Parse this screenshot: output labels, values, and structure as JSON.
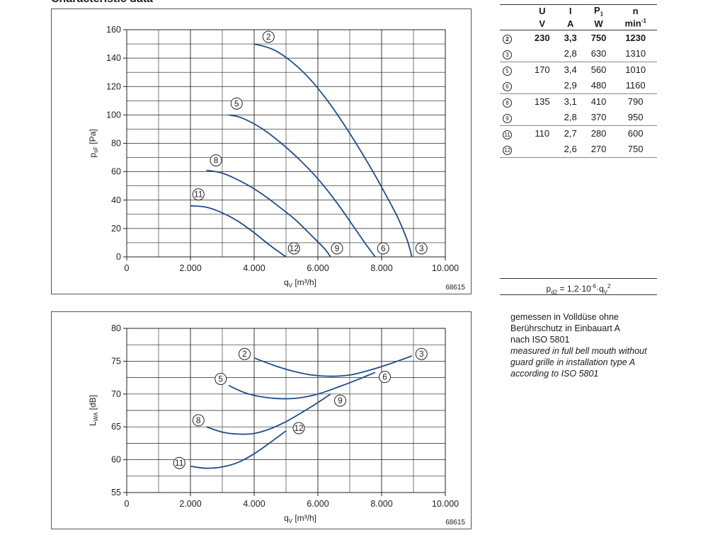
{
  "header": {
    "title": "Characteristic data"
  },
  "chart_data": [
    {
      "type": "line",
      "title": "",
      "xlabel": "q_V [m³/h]",
      "ylabel": "p_sF [Pa]",
      "xlim": [
        0,
        10000
      ],
      "ylim": [
        0,
        160
      ],
      "xticks": [
        "0",
        "2.000",
        "4.000",
        "6.000",
        "8.000",
        "10.000"
      ],
      "yticks": [
        "0",
        "20",
        "40",
        "60",
        "80",
        "100",
        "120",
        "140",
        "160"
      ],
      "grid": true,
      "figure_id": "68615",
      "series": [
        {
          "name": "2",
          "x": [
            4000,
            4600,
            5200,
            5800,
            6400,
            7000,
            7600,
            8100,
            8500,
            8800,
            8950
          ],
          "y": [
            150,
            146,
            137,
            124,
            107,
            87,
            65,
            45,
            28,
            12,
            0
          ]
        },
        {
          "name": "5",
          "x": [
            3200,
            3600,
            4200,
            4800,
            5400,
            6000,
            6600,
            7100,
            7500,
            7800
          ],
          "y": [
            100,
            98,
            91,
            81,
            69,
            55,
            38,
            22,
            9,
            0
          ]
        },
        {
          "name": "8",
          "x": [
            2500,
            3000,
            3600,
            4200,
            4800,
            5300,
            5800,
            6200,
            6400
          ],
          "y": [
            61,
            59,
            53,
            45,
            35,
            26,
            15,
            6,
            0
          ]
        },
        {
          "name": "11",
          "x": [
            2000,
            2500,
            3000,
            3500,
            4000,
            4500,
            5000
          ],
          "y": [
            36,
            35,
            31,
            25,
            17,
            8,
            0
          ]
        }
      ],
      "curve_labels": [
        {
          "text": "2",
          "x": 4450,
          "y": 155
        },
        {
          "text": "5",
          "x": 3450,
          "y": 108
        },
        {
          "text": "8",
          "x": 2800,
          "y": 68
        },
        {
          "text": "11",
          "x": 2250,
          "y": 44
        },
        {
          "text": "12",
          "x": 5250,
          "y": 6
        },
        {
          "text": "9",
          "x": 6600,
          "y": 6
        },
        {
          "text": "6",
          "x": 8050,
          "y": 6
        },
        {
          "text": "3",
          "x": 9250,
          "y": 6
        }
      ]
    },
    {
      "type": "line",
      "title": "",
      "xlabel": "q_V [m³/h]",
      "ylabel": "L_WA [dB]",
      "xlim": [
        0,
        10000
      ],
      "ylim": [
        55,
        80
      ],
      "xticks": [
        "0",
        "2.000",
        "4.000",
        "6.000",
        "8.000",
        "10.000"
      ],
      "yticks": [
        "55",
        "60",
        "65",
        "70",
        "75",
        "80"
      ],
      "grid": true,
      "figure_id": "68615",
      "series": [
        {
          "name": "2-3",
          "x": [
            4000,
            4600,
            5200,
            5800,
            6400,
            7000,
            7600,
            8200,
            8950
          ],
          "y": [
            75.5,
            74.4,
            73.5,
            72.9,
            72.7,
            72.9,
            73.6,
            74.5,
            75.8
          ]
        },
        {
          "name": "5-6",
          "x": [
            3200,
            3700,
            4200,
            4800,
            5400,
            6000,
            6600,
            7200,
            7800
          ],
          "y": [
            71.3,
            70.2,
            69.6,
            69.3,
            69.4,
            70.0,
            71.0,
            72.1,
            73.3
          ]
        },
        {
          "name": "8-9",
          "x": [
            2500,
            3000,
            3500,
            4000,
            4500,
            5000,
            5500,
            6000,
            6400
          ],
          "y": [
            65.0,
            64.2,
            63.9,
            64.0,
            64.7,
            65.8,
            67.2,
            68.7,
            70.0
          ]
        },
        {
          "name": "11-12",
          "x": [
            2000,
            2500,
            3000,
            3500,
            4000,
            4500,
            5000
          ],
          "y": [
            59.0,
            58.7,
            58.9,
            59.6,
            60.9,
            62.6,
            64.4
          ]
        }
      ],
      "curve_labels": [
        {
          "text": "2",
          "x": 3700,
          "y": 76.1
        },
        {
          "text": "3",
          "x": 9250,
          "y": 76.1
        },
        {
          "text": "5",
          "x": 2950,
          "y": 72.3
        },
        {
          "text": "6",
          "x": 8100,
          "y": 72.6
        },
        {
          "text": "8",
          "x": 2250,
          "y": 66.0
        },
        {
          "text": "9",
          "x": 6700,
          "y": 69.0
        },
        {
          "text": "11",
          "x": 1650,
          "y": 59.5
        },
        {
          "text": "12",
          "x": 5400,
          "y": 64.8
        }
      ]
    }
  ],
  "table": {
    "headers": [
      "U",
      "I",
      "P1",
      "n"
    ],
    "units": [
      "V",
      "A",
      "W",
      "min⁻¹"
    ],
    "groups": [
      {
        "rows": [
          {
            "curve": "2",
            "U": "230",
            "I": "3,3",
            "P": "750",
            "n": "1230",
            "bold": true
          },
          {
            "curve": "3",
            "U": "",
            "I": "2,8",
            "P": "630",
            "n": "1310",
            "bold": false
          }
        ]
      },
      {
        "rows": [
          {
            "curve": "5",
            "U": "170",
            "I": "3,4",
            "P": "560",
            "n": "1010",
            "bold": false
          },
          {
            "curve": "6",
            "U": "",
            "I": "2,9",
            "P": "480",
            "n": "1160",
            "bold": false
          }
        ]
      },
      {
        "rows": [
          {
            "curve": "8",
            "U": "135",
            "I": "3,1",
            "P": "410",
            "n": "790",
            "bold": false
          },
          {
            "curve": "9",
            "U": "",
            "I": "2,8",
            "P": "370",
            "n": "950",
            "bold": false
          }
        ]
      },
      {
        "rows": [
          {
            "curve": "11",
            "U": "110",
            "I": "2,7",
            "P": "280",
            "n": "600",
            "bold": false
          },
          {
            "curve": "12",
            "U": "",
            "I": "2,6",
            "P": "270",
            "n": "750",
            "bold": false
          }
        ]
      }
    ]
  },
  "formula": "p_d2 = 1,2·10⁻⁶·q_V²",
  "notes": {
    "de": [
      "gemessen in Volldüse ohne",
      "Berührschutz in Einbauart A",
      "nach ISO 5801"
    ],
    "en": [
      "measured in full bell mouth without",
      "guard grille in installation type A",
      "according to ISO 5801"
    ]
  },
  "colors": {
    "curve": "#1f4e8c",
    "grid": "#222222",
    "frame": "#555555"
  }
}
